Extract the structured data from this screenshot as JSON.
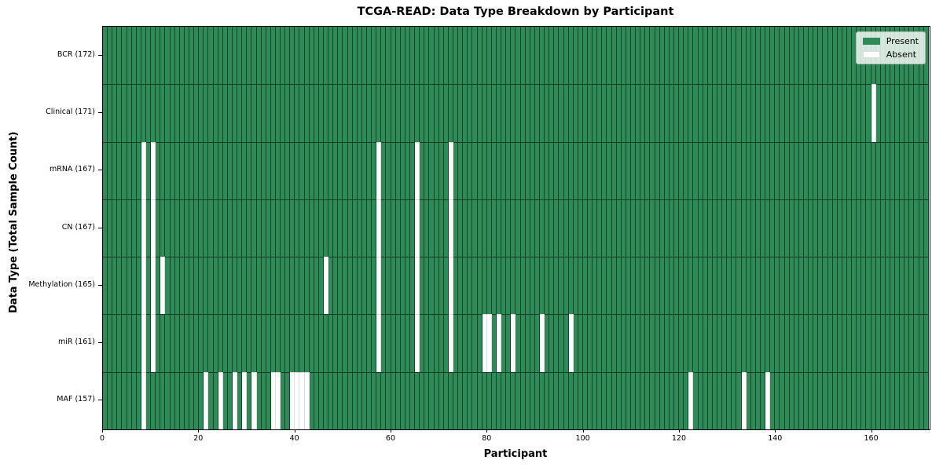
{
  "chart_data": {
    "type": "heatmap",
    "title": "TCGA-READ: Data Type Breakdown by Participant",
    "xlabel": "Participant",
    "ylabel": "Data Type (Total Sample Count)",
    "x_ticks": [
      0,
      20,
      40,
      60,
      80,
      100,
      120,
      140,
      160
    ],
    "x_range": [
      0,
      172
    ],
    "n_participants": 172,
    "grid_lines": "cell borders drawn over both present and absent cells",
    "colors": {
      "present": "#2e8b57",
      "absent": "#ffffff",
      "cell_edge": "rgba(0,0,0,0.5)",
      "spine": "#000000"
    },
    "legend": {
      "position": "upper right",
      "entries": [
        {
          "label": "Present",
          "color": "#2e8b57"
        },
        {
          "label": "Absent",
          "color": "#ffffff"
        }
      ]
    },
    "rows": [
      {
        "data_type": "BCR",
        "label": "BCR (172)",
        "total_sample_count": 172,
        "absent_participants": []
      },
      {
        "data_type": "Clinical",
        "label": "Clinical (171)",
        "total_sample_count": 171,
        "absent_participants": [
          160
        ]
      },
      {
        "data_type": "mRNA",
        "label": "mRNA (167)",
        "total_sample_count": 167,
        "absent_participants": [
          8,
          10,
          57,
          65,
          72
        ]
      },
      {
        "data_type": "CN",
        "label": "CN (167)",
        "total_sample_count": 167,
        "absent_participants": [
          8,
          10,
          57,
          65,
          72
        ]
      },
      {
        "data_type": "Methylation",
        "label": "Methylation (165)",
        "total_sample_count": 165,
        "absent_participants": [
          8,
          10,
          12,
          46,
          57,
          65,
          72
        ]
      },
      {
        "data_type": "miR",
        "label": "miR (161)",
        "total_sample_count": 161,
        "absent_participants": [
          8,
          10,
          57,
          65,
          72,
          79,
          80,
          82,
          85,
          91,
          97
        ]
      },
      {
        "data_type": "MAF",
        "label": "MAF (157)",
        "total_sample_count": 157,
        "absent_participants": [
          8,
          21,
          24,
          27,
          29,
          31,
          35,
          36,
          39,
          40,
          41,
          42,
          122,
          133,
          138
        ]
      }
    ]
  }
}
